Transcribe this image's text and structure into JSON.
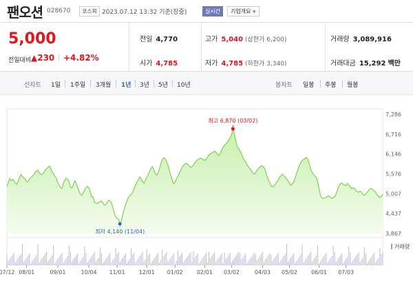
{
  "header": {
    "name": "팬오션",
    "code": "028670",
    "market": "코스피",
    "time": "2023.07.12 13:32",
    "basis": "기준(장중)",
    "live": "실시간",
    "company_info": "기업개요"
  },
  "quote": {
    "price": "5,000",
    "change_label": "전일대비",
    "change": "▲230",
    "change_pct": "+4.82%",
    "prev_close_label": "전일",
    "prev_close": "4,770",
    "high_label": "고가",
    "high": "5,040",
    "upper_limit": "(상한가 6,200)",
    "volume_label": "거래량",
    "volume": "3,089,916",
    "open_label": "시가",
    "open": "4,785",
    "low_label": "저가",
    "low": "4,785",
    "lower_limit": "(하한가 3,340)",
    "amount_label": "거래대금",
    "amount": "15,292",
    "amount_unit": "백만"
  },
  "tabs": {
    "line_label": "선차트",
    "line_periods": [
      "1일",
      "1주일",
      "3개월",
      "1년",
      "3년",
      "5년",
      "10년"
    ],
    "selected": "1년",
    "candle_label": "봉차트",
    "candle_periods": [
      "일봉",
      "주봉",
      "월봉"
    ]
  },
  "colors": {
    "up": "#e0161d",
    "selected_tab": "#3366cc",
    "line": "#7dd34a",
    "area_top": "#d7f5c3",
    "volume_bar": "#b3b3d9"
  },
  "chart_data": {
    "type": "area",
    "y_ticks": [
      "7,286",
      "6,716",
      "6,146",
      "5,576",
      "5,007",
      "4,437",
      "3,867"
    ],
    "ylim": [
      3867,
      7286
    ],
    "x_ticks": [
      "07/12",
      "08/01",
      "09/01",
      "10/04",
      "11/01",
      "12/01",
      "01/02",
      "02/01",
      "03/02",
      "04/03",
      "05/02",
      "06/01",
      "07/03"
    ],
    "x_tick_index": [
      0,
      14,
      36,
      58,
      78,
      99,
      119,
      140,
      159,
      181,
      200,
      221,
      240
    ],
    "high_label": "최고 6,870 (03/02)",
    "high_value": 6870,
    "high_index": 160,
    "low_label": "최저 4,140 (11/04)",
    "low_value": 4140,
    "low_index": 80,
    "volume_legend": "거래량",
    "values": [
      5220,
      5320,
      5450,
      5380,
      5420,
      5380,
      5300,
      5280,
      5380,
      5470,
      5560,
      5500,
      5460,
      5440,
      5350,
      5360,
      5430,
      5480,
      5510,
      5550,
      5620,
      5660,
      5680,
      5600,
      5560,
      5560,
      5600,
      5680,
      5720,
      5760,
      5800,
      5740,
      5640,
      5580,
      5510,
      5450,
      5330,
      5250,
      5180,
      5160,
      5310,
      5400,
      5450,
      5420,
      5350,
      5200,
      5170,
      5250,
      5380,
      5310,
      5200,
      5090,
      4990,
      4960,
      5030,
      5110,
      5180,
      5220,
      5170,
      5080,
      4910,
      4920,
      4760,
      4740,
      4720,
      4760,
      4780,
      4800,
      4740,
      4680,
      4700,
      4760,
      4820,
      4800,
      4740,
      4620,
      4450,
      4350,
      4300,
      4280,
      4140,
      4230,
      4400,
      4560,
      4700,
      4800,
      4900,
      4950,
      4990,
      5050,
      5150,
      5250,
      5330,
      5400,
      5490,
      5440,
      5360,
      5310,
      5390,
      5470,
      5550,
      5640,
      5730,
      5780,
      5700,
      5590,
      5540,
      5600,
      5730,
      5870,
      5980,
      6040,
      6010,
      5940,
      5830,
      5670,
      5530,
      5400,
      5300,
      5330,
      5440,
      5510,
      5590,
      5680,
      5760,
      5820,
      5860,
      5880,
      5850,
      5810,
      5760,
      5780,
      5830,
      5890,
      5950,
      5980,
      6010,
      6030,
      6010,
      5990,
      5960,
      6000,
      6060,
      6120,
      6150,
      6180,
      6200,
      6230,
      6200,
      6150,
      6100,
      6160,
      6260,
      6350,
      6390,
      6440,
      6480,
      6550,
      6620,
      6700,
      6870,
      6720,
      6520,
      6350,
      6310,
      6240,
      6160,
      6040,
      5980,
      5920,
      5840,
      5780,
      5730,
      5670,
      5600,
      5570,
      5610,
      5680,
      5730,
      5770,
      5820,
      5790,
      5760,
      5670,
      5520,
      5410,
      5330,
      5250,
      5200,
      5230,
      5280,
      5340,
      5400,
      5470,
      5530,
      5570,
      5520,
      5480,
      5430,
      5380,
      5310,
      5250,
      5290,
      5340,
      5460,
      5580,
      5700,
      5810,
      5900,
      5960,
      5990,
      6020,
      6050,
      5990,
      5870,
      5700,
      5620,
      5560,
      5520,
      5480,
      5350,
      5140,
      4940,
      4880,
      4870,
      4890,
      4900,
      4930,
      4950,
      4900,
      4870,
      4900,
      4920,
      5000,
      5120,
      5230,
      5290,
      5320,
      5280,
      5250,
      5240,
      5300,
      5260,
      5210,
      5150,
      5180,
      5160,
      5100,
      5060,
      5050,
      5080,
      5050,
      4980,
      4960,
      5000,
      5050,
      5100,
      5150,
      5160,
      5120,
      5080,
      5050,
      4980,
      4930,
      4900,
      4930,
      5000
    ]
  }
}
